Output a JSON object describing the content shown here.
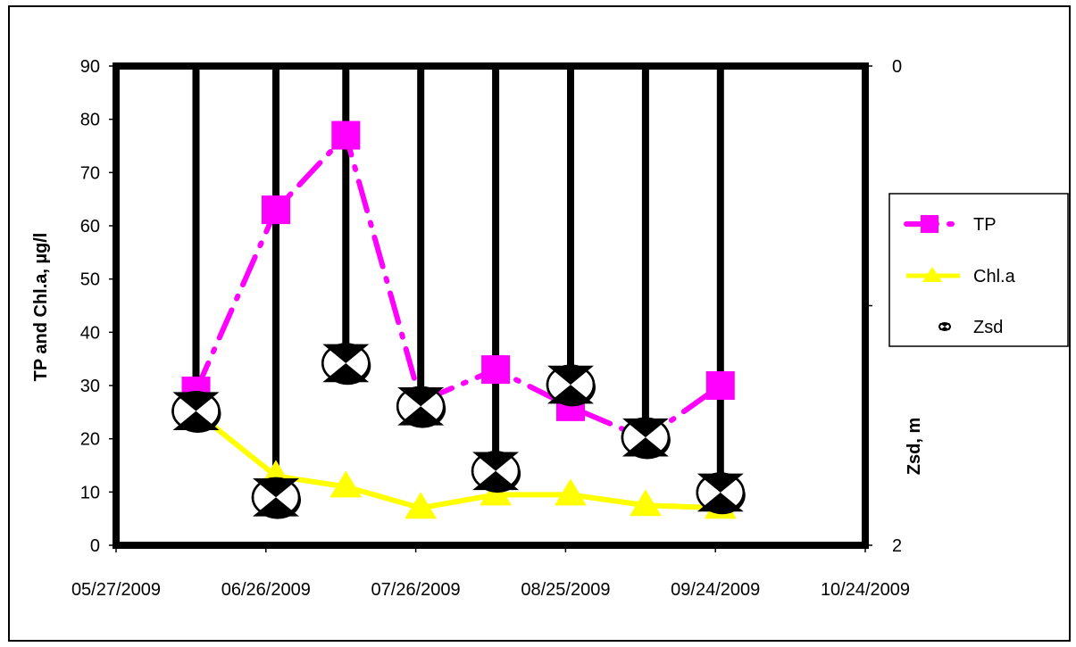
{
  "chart_data": {
    "type": "line",
    "title": "",
    "y_left_label": "TP and Chl.a, µg/l",
    "y_right_label": "Zsd, m",
    "x_axis": {
      "type": "date",
      "min": "2009-05-27",
      "max": "2009-10-24",
      "ticks": [
        "05/27/2009",
        "06/26/2009",
        "07/26/2009",
        "08/25/2009",
        "09/24/2009",
        "10/24/2009"
      ]
    },
    "y_left": {
      "min": 0,
      "max": 90,
      "ticks": [
        "0",
        "10",
        "20",
        "30",
        "40",
        "50",
        "60",
        "70",
        "80",
        "90"
      ]
    },
    "y_right": {
      "min": 0,
      "max": 2,
      "inverted": true,
      "ticks": [
        "0",
        "1",
        "2"
      ]
    },
    "legend_position": "right",
    "series": [
      {
        "name": "TP",
        "axis": "left",
        "color": "#ff00ff",
        "line_style": "dash-dot",
        "marker": "square",
        "points": [
          {
            "x": "2009-06-12",
            "y": 29
          },
          {
            "x": "2009-06-28",
            "y": 63
          },
          {
            "x": "2009-07-12",
            "y": 77
          },
          {
            "x": "2009-07-27",
            "y": 27
          },
          {
            "x": "2009-08-11",
            "y": 33
          },
          {
            "x": "2009-08-26",
            "y": 26
          },
          {
            "x": "2009-09-10",
            "y": 20
          },
          {
            "x": "2009-09-25",
            "y": 30
          }
        ]
      },
      {
        "name": "Chl.a",
        "axis": "left",
        "color": "#ffff00",
        "line_style": "solid",
        "marker": "triangle",
        "points": [
          {
            "x": "2009-06-12",
            "y": 25
          },
          {
            "x": "2009-06-28",
            "y": 13
          },
          {
            "x": "2009-07-12",
            "y": 11
          },
          {
            "x": "2009-07-27",
            "y": 7
          },
          {
            "x": "2009-08-11",
            "y": 9.5
          },
          {
            "x": "2009-08-26",
            "y": 9.5
          },
          {
            "x": "2009-09-10",
            "y": 7.5
          },
          {
            "x": "2009-09-25",
            "y": 7
          }
        ]
      },
      {
        "name": "Zsd",
        "axis": "right",
        "color": "#000000",
        "line_style": "drop-line",
        "marker": "secchi-disk",
        "points": [
          {
            "x": "2009-06-12",
            "y": 1.44
          },
          {
            "x": "2009-06-28",
            "y": 1.8
          },
          {
            "x": "2009-07-12",
            "y": 1.24
          },
          {
            "x": "2009-07-27",
            "y": 1.42
          },
          {
            "x": "2009-08-11",
            "y": 1.69
          },
          {
            "x": "2009-08-26",
            "y": 1.33
          },
          {
            "x": "2009-09-10",
            "y": 1.55
          },
          {
            "x": "2009-09-25",
            "y": 1.78
          }
        ]
      }
    ]
  }
}
